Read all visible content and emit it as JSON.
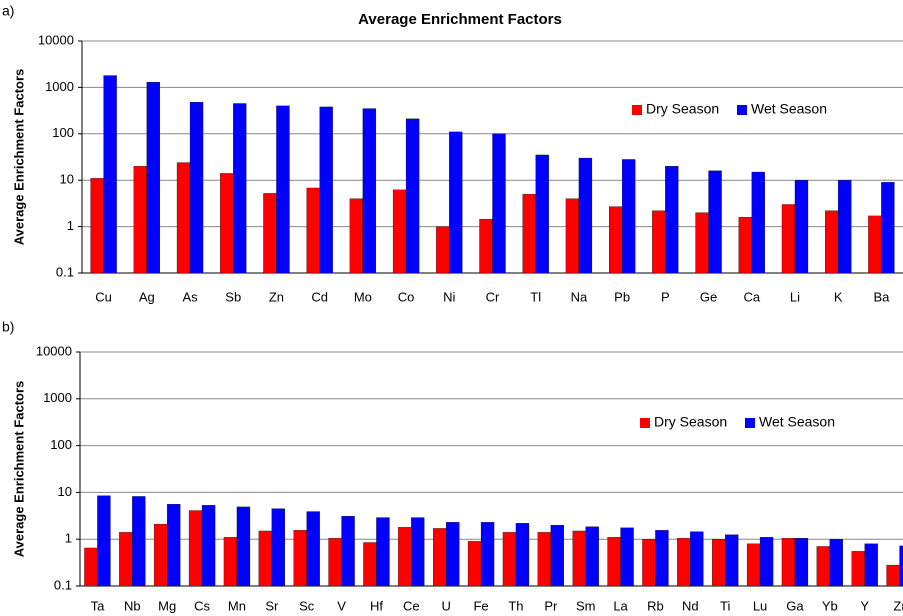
{
  "chart_data": [
    {
      "type": "bar",
      "title": "Average Enrichment Factors",
      "panel_label": "a)",
      "ylabel": "Average Enrichment Factors",
      "categories": [
        "Cu",
        "Ag",
        "As",
        "Sb",
        "Zn",
        "Cd",
        "Mo",
        "Co",
        "Ni",
        "Cr",
        "Tl",
        "Na",
        "Pb",
        "P",
        "Ge",
        "Ca",
        "Li",
        "K",
        "Ba"
      ],
      "series": [
        {
          "name": "Dry Season",
          "color": "#ff0000",
          "values": [
            11,
            20,
            24,
            14,
            5.2,
            6.8,
            4,
            6.2,
            1.0,
            1.45,
            5,
            4,
            2.7,
            2.2,
            2.0,
            1.6,
            3,
            2.2,
            1.7
          ]
        },
        {
          "name": "Wet Season",
          "color": "#0000ff",
          "values": [
            1800,
            1300,
            480,
            450,
            400,
            380,
            350,
            210,
            110,
            100,
            35,
            30,
            28,
            20,
            16,
            15,
            10,
            10,
            9
          ]
        }
      ],
      "ylim": [
        0.1,
        10000
      ],
      "yticks": [
        0.1,
        1,
        10,
        100,
        1000,
        10000
      ],
      "log_scale": true,
      "grid": true,
      "legend": "right"
    },
    {
      "type": "bar",
      "panel_label": "b)",
      "ylabel": "Average Enrichment Factors",
      "categories": [
        "Ta",
        "Nb",
        "Mg",
        "Cs",
        "Mn",
        "Sr",
        "Sc",
        "V",
        "Hf",
        "Ce",
        "U",
        "Fe",
        "Th",
        "Pr",
        "Sm",
        "La",
        "Rb",
        "Nd",
        "Ti",
        "Lu",
        "Ga",
        "Yb",
        "Y",
        "Zr"
      ],
      "series": [
        {
          "name": "Dry Season",
          "color": "#ff0000",
          "values": [
            0.65,
            1.4,
            2.1,
            4.1,
            1.1,
            1.5,
            1.55,
            1.05,
            0.85,
            1.8,
            1.7,
            0.9,
            1.4,
            1.4,
            1.5,
            1.1,
            1.0,
            1.05,
            1.0,
            0.8,
            1.05,
            0.7,
            0.55,
            0.28
          ]
        },
        {
          "name": "Wet Season",
          "color": "#0000ff",
          "values": [
            8.5,
            8.2,
            5.6,
            5.3,
            4.9,
            4.5,
            3.9,
            3.1,
            2.9,
            2.9,
            2.3,
            2.3,
            2.2,
            2.0,
            1.85,
            1.75,
            1.55,
            1.45,
            1.25,
            1.1,
            1.05,
            1.0,
            0.8,
            0.72
          ]
        }
      ],
      "ylim": [
        0.1,
        10000
      ],
      "yticks": [
        0.1,
        1,
        10,
        100,
        1000,
        10000
      ],
      "log_scale": true,
      "grid": true,
      "legend": "right"
    }
  ]
}
